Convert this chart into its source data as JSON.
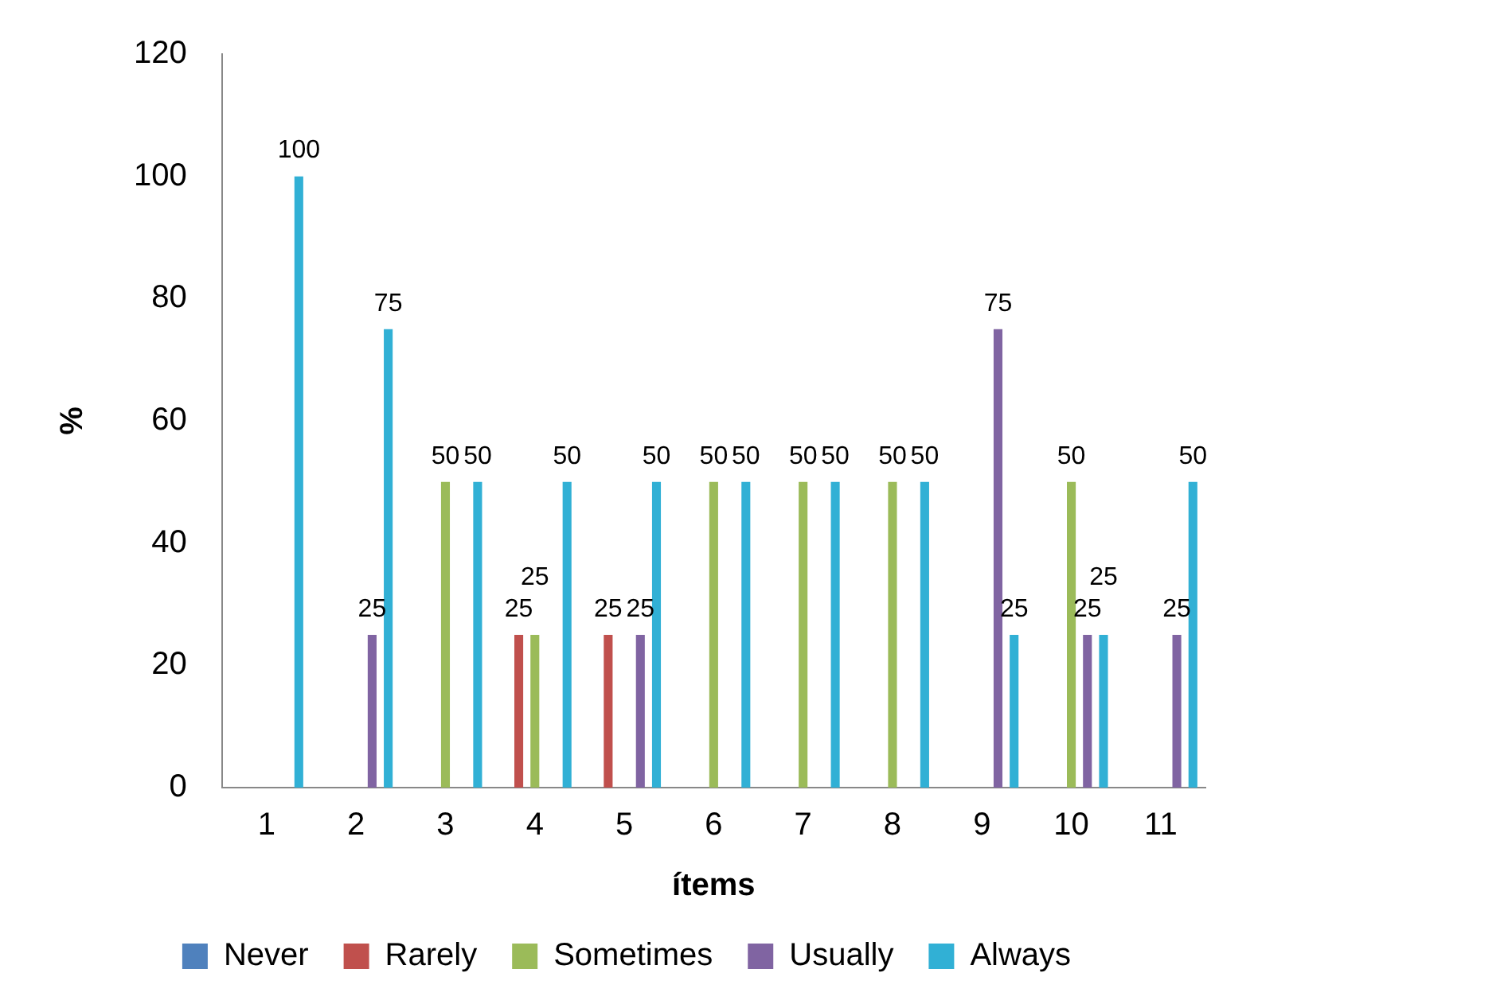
{
  "chart_data": {
    "type": "bar",
    "xlabel": "ítems",
    "ylabel": "%",
    "categories": [
      "1",
      "2",
      "3",
      "4",
      "5",
      "6",
      "7",
      "8",
      "9",
      "10",
      "11"
    ],
    "series": [
      {
        "name": "Never",
        "color": "#4f81bd",
        "values": [
          null,
          null,
          null,
          null,
          null,
          null,
          null,
          null,
          null,
          null,
          null
        ]
      },
      {
        "name": "Rarely",
        "color": "#c0504d",
        "values": [
          null,
          null,
          null,
          25,
          25,
          null,
          null,
          null,
          null,
          null,
          null
        ]
      },
      {
        "name": "Sometimes",
        "color": "#9bbb59",
        "values": [
          null,
          null,
          50,
          25,
          null,
          50,
          50,
          50,
          null,
          50,
          null
        ]
      },
      {
        "name": "Usually",
        "color": "#8064a2",
        "values": [
          null,
          25,
          null,
          null,
          25,
          null,
          null,
          null,
          75,
          25,
          25
        ]
      },
      {
        "name": "Always",
        "color": "#31b0d5",
        "values": [
          100,
          75,
          50,
          50,
          50,
          50,
          50,
          50,
          25,
          25,
          50
        ]
      }
    ],
    "ylim": [
      0,
      120
    ],
    "yticks": [
      0,
      20,
      40,
      60,
      80,
      100,
      120
    ],
    "grid": false,
    "legend": "bottom",
    "data_labels": true
  }
}
